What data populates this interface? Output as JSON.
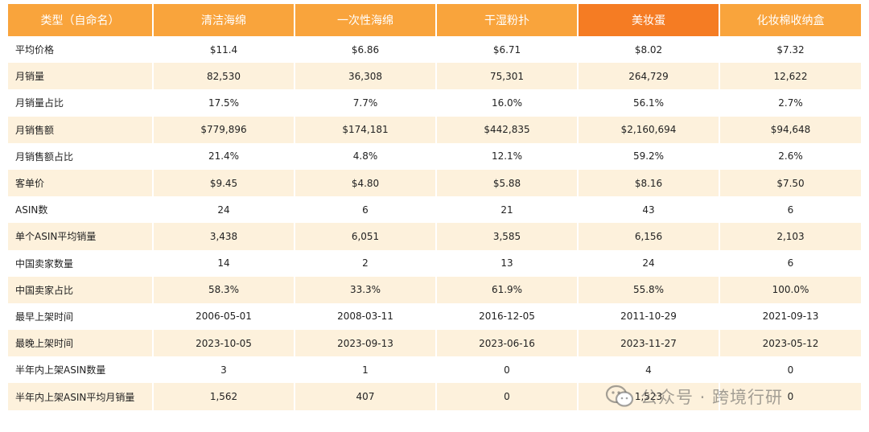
{
  "table": {
    "headers": [
      "类型（自命名）",
      "清洁海绵",
      "一次性海绵",
      "干湿粉扑",
      "美妆蛋",
      "化妆棉收纳盒"
    ],
    "highlight_col": 4,
    "rows": [
      {
        "label": "平均价格",
        "cells": [
          "$11.4",
          "$6.86",
          "$6.71",
          "$8.02",
          "$7.32"
        ]
      },
      {
        "label": "月销量",
        "cells": [
          "82,530",
          "36,308",
          "75,301",
          "264,729",
          "12,622"
        ]
      },
      {
        "label": "月销量占比",
        "cells": [
          "17.5%",
          "7.7%",
          "16.0%",
          "56.1%",
          "2.7%"
        ]
      },
      {
        "label": "月销售额",
        "cells": [
          "$779,896",
          "$174,181",
          "$442,835",
          "$2,160,694",
          "$94,648"
        ]
      },
      {
        "label": "月销售额占比",
        "cells": [
          "21.4%",
          "4.8%",
          "12.1%",
          "59.2%",
          "2.6%"
        ]
      },
      {
        "label": "客单价",
        "cells": [
          "$9.45",
          "$4.80",
          "$5.88",
          "$8.16",
          "$7.50"
        ]
      },
      {
        "label": "ASIN数",
        "cells": [
          "24",
          "6",
          "21",
          "43",
          "6"
        ]
      },
      {
        "label": "单个ASIN平均销量",
        "cells": [
          "3,438",
          "6,051",
          "3,585",
          "6,156",
          "2,103"
        ]
      },
      {
        "label": "中国卖家数量",
        "cells": [
          "14",
          "2",
          "13",
          "24",
          "6"
        ]
      },
      {
        "label": "中国卖家占比",
        "cells": [
          "58.3%",
          "33.3%",
          "61.9%",
          "55.8%",
          "100.0%"
        ]
      },
      {
        "label": "最早上架时间",
        "cells": [
          "2006-05-01",
          "2008-03-11",
          "2016-12-05",
          "2011-10-29",
          "2021-09-13"
        ]
      },
      {
        "label": "最晚上架时间",
        "cells": [
          "2023-10-05",
          "2023-09-13",
          "2023-06-16",
          "2023-11-27",
          "2023-05-12"
        ]
      },
      {
        "label": "半年内上架ASIN数量",
        "cells": [
          "3",
          "1",
          "0",
          "4",
          "0"
        ]
      },
      {
        "label": "半年内上架ASIN平均月销量",
        "cells": [
          "1,562",
          "407",
          "0",
          "1,523",
          "0"
        ]
      }
    ]
  },
  "watermark": {
    "text": "公众号 · 跨境行研",
    "icon": "wechat-icon"
  },
  "colors": {
    "header": "#f9a43c",
    "header_highlight": "#f57c23",
    "row_alt": "#fdf1dc"
  }
}
